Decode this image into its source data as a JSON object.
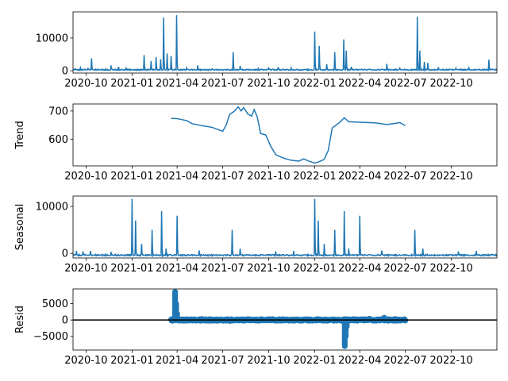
{
  "chart_data": [
    {
      "type": "line",
      "panel": "observed",
      "ylabel": "",
      "ylim": [
        -700,
        18000
      ],
      "yticks": [
        0,
        10000
      ],
      "xlim": [
        "2020-09-05",
        "2022-12-31"
      ],
      "xticks": [
        "2020-10",
        "2021-01",
        "2021-04",
        "2021-07",
        "2021-10",
        "2022-01",
        "2022-04",
        "2022-07",
        "2022-10"
      ],
      "color": "#1f77b4",
      "spikes": [
        {
          "x": "2020-09-10",
          "y": 600
        },
        {
          "x": "2020-09-20",
          "y": 900
        },
        {
          "x": "2020-10-05",
          "y": 700
        },
        {
          "x": "2020-10-12",
          "y": 3800
        },
        {
          "x": "2020-11-20",
          "y": 1600
        },
        {
          "x": "2020-12-05",
          "y": 1200
        },
        {
          "x": "2020-12-20",
          "y": 800
        },
        {
          "x": "2021-01-25",
          "y": 4800
        },
        {
          "x": "2021-02-08",
          "y": 3000
        },
        {
          "x": "2021-02-18",
          "y": 4200
        },
        {
          "x": "2021-02-27",
          "y": 3500
        },
        {
          "x": "2021-03-05",
          "y": 16300
        },
        {
          "x": "2021-03-12",
          "y": 5300
        },
        {
          "x": "2021-03-20",
          "y": 4500
        },
        {
          "x": "2021-03-31",
          "y": 17000
        },
        {
          "x": "2021-04-20",
          "y": 900
        },
        {
          "x": "2021-05-12",
          "y": 1600
        },
        {
          "x": "2021-06-10",
          "y": 600
        },
        {
          "x": "2021-07-22",
          "y": 5700
        },
        {
          "x": "2021-08-05",
          "y": 1500
        },
        {
          "x": "2021-09-10",
          "y": 700
        },
        {
          "x": "2021-10-01",
          "y": 800
        },
        {
          "x": "2021-10-20",
          "y": 1100
        },
        {
          "x": "2021-11-15",
          "y": 900
        },
        {
          "x": "2022-01-01",
          "y": 12000
        },
        {
          "x": "2022-01-10",
          "y": 7600
        },
        {
          "x": "2022-01-25",
          "y": 2000
        },
        {
          "x": "2022-02-10",
          "y": 5700
        },
        {
          "x": "2022-02-28",
          "y": 9600
        },
        {
          "x": "2022-03-05",
          "y": 6200
        },
        {
          "x": "2022-03-15",
          "y": 1200
        },
        {
          "x": "2022-05-25",
          "y": 2100
        },
        {
          "x": "2022-06-20",
          "y": 800
        },
        {
          "x": "2022-07-25",
          "y": 16500
        },
        {
          "x": "2022-07-30",
          "y": 6200
        },
        {
          "x": "2022-08-08",
          "y": 2700
        },
        {
          "x": "2022-08-15",
          "y": 2400
        },
        {
          "x": "2022-09-05",
          "y": 1100
        },
        {
          "x": "2022-10-10",
          "y": 800
        },
        {
          "x": "2022-11-05",
          "y": 900
        },
        {
          "x": "2022-12-15",
          "y": 3400
        }
      ]
    },
    {
      "type": "line",
      "panel": "trend",
      "ylabel": "Trend",
      "ylim": [
        505,
        725
      ],
      "yticks": [
        600,
        700
      ],
      "xlim": [
        "2020-09-05",
        "2022-12-31"
      ],
      "xticks": [
        "2020-10",
        "2021-01",
        "2021-04",
        "2021-07",
        "2021-10",
        "2022-01",
        "2022-04",
        "2022-07",
        "2022-10"
      ],
      "color": "#1f77b4",
      "points": [
        {
          "x": "2021-03-20",
          "y": 674
        },
        {
          "x": "2021-04-01",
          "y": 673
        },
        {
          "x": "2021-04-20",
          "y": 666
        },
        {
          "x": "2021-05-01",
          "y": 655
        },
        {
          "x": "2021-05-20",
          "y": 648
        },
        {
          "x": "2021-06-10",
          "y": 642
        },
        {
          "x": "2021-06-25",
          "y": 632
        },
        {
          "x": "2021-07-01",
          "y": 628
        },
        {
          "x": "2021-07-08",
          "y": 650
        },
        {
          "x": "2021-07-15",
          "y": 688
        },
        {
          "x": "2021-07-25",
          "y": 700
        },
        {
          "x": "2021-08-01",
          "y": 715
        },
        {
          "x": "2021-08-07",
          "y": 700
        },
        {
          "x": "2021-08-12",
          "y": 712
        },
        {
          "x": "2021-08-20",
          "y": 690
        },
        {
          "x": "2021-08-28",
          "y": 682
        },
        {
          "x": "2021-09-02",
          "y": 705
        },
        {
          "x": "2021-09-08",
          "y": 680
        },
        {
          "x": "2021-09-15",
          "y": 620
        },
        {
          "x": "2021-09-25",
          "y": 615
        },
        {
          "x": "2021-10-05",
          "y": 575
        },
        {
          "x": "2021-10-15",
          "y": 545
        },
        {
          "x": "2021-10-30",
          "y": 533
        },
        {
          "x": "2021-11-15",
          "y": 525
        },
        {
          "x": "2021-11-30",
          "y": 522
        },
        {
          "x": "2021-12-10",
          "y": 530
        },
        {
          "x": "2021-12-20",
          "y": 522
        },
        {
          "x": "2022-01-01",
          "y": 515
        },
        {
          "x": "2022-01-10",
          "y": 520
        },
        {
          "x": "2022-01-20",
          "y": 528
        },
        {
          "x": "2022-01-28",
          "y": 560
        },
        {
          "x": "2022-02-05",
          "y": 640
        },
        {
          "x": "2022-02-20",
          "y": 660
        },
        {
          "x": "2022-03-01",
          "y": 676
        },
        {
          "x": "2022-03-10",
          "y": 662
        },
        {
          "x": "2022-04-01",
          "y": 660
        },
        {
          "x": "2022-05-01",
          "y": 658
        },
        {
          "x": "2022-05-25",
          "y": 652
        },
        {
          "x": "2022-06-10",
          "y": 656
        },
        {
          "x": "2022-06-20",
          "y": 659
        },
        {
          "x": "2022-07-01",
          "y": 648
        }
      ]
    },
    {
      "type": "line",
      "panel": "seasonal",
      "ylabel": "Seasonal",
      "ylim": [
        -1000,
        12200
      ],
      "yticks": [
        0,
        10000
      ],
      "xlim": [
        "2020-09-05",
        "2022-12-31"
      ],
      "xticks": [
        "2020-10",
        "2021-01",
        "2021-04",
        "2021-07",
        "2021-10",
        "2022-01",
        "2022-04",
        "2022-07",
        "2022-10"
      ],
      "color": "#1f77b4",
      "spikes": [
        {
          "x": "2020-09-12",
          "y": 500
        },
        {
          "x": "2020-09-25",
          "y": 400
        },
        {
          "x": "2020-10-10",
          "y": 500
        },
        {
          "x": "2020-11-20",
          "y": 300
        },
        {
          "x": "2021-01-01",
          "y": 11600
        },
        {
          "x": "2021-01-08",
          "y": 7000
        },
        {
          "x": "2021-01-20",
          "y": 2000
        },
        {
          "x": "2021-02-10",
          "y": 5000
        },
        {
          "x": "2021-03-01",
          "y": 9000
        },
        {
          "x": "2021-03-10",
          "y": 1000
        },
        {
          "x": "2021-04-01",
          "y": 8000
        },
        {
          "x": "2021-05-15",
          "y": 600
        },
        {
          "x": "2021-07-20",
          "y": 5000
        },
        {
          "x": "2021-08-05",
          "y": 1000
        },
        {
          "x": "2021-10-15",
          "y": 400
        },
        {
          "x": "2021-11-20",
          "y": 500
        },
        {
          "x": "2022-01-01",
          "y": 11600
        },
        {
          "x": "2022-01-08",
          "y": 7000
        },
        {
          "x": "2022-01-20",
          "y": 2000
        },
        {
          "x": "2022-02-10",
          "y": 5000
        },
        {
          "x": "2022-03-01",
          "y": 9000
        },
        {
          "x": "2022-03-10",
          "y": 1000
        },
        {
          "x": "2022-04-01",
          "y": 8000
        },
        {
          "x": "2022-05-15",
          "y": 600
        },
        {
          "x": "2022-07-20",
          "y": 5000
        },
        {
          "x": "2022-08-05",
          "y": 1000
        },
        {
          "x": "2022-10-15",
          "y": 400
        },
        {
          "x": "2022-11-20",
          "y": 500
        }
      ]
    },
    {
      "type": "scatter",
      "panel": "resid",
      "ylabel": "Resid",
      "ylim": [
        -9200,
        9500
      ],
      "yticks": [
        -5000,
        0,
        5000
      ],
      "xlim": [
        "2020-09-05",
        "2022-12-31"
      ],
      "xticks": [
        "2020-10",
        "2021-01",
        "2021-04",
        "2021-07",
        "2021-10",
        "2022-01",
        "2022-04",
        "2022-07",
        "2022-10"
      ],
      "color": "#1f77b4",
      "zero_line": true,
      "band": {
        "x_start": "2021-03-20",
        "x_end": "2022-07-01"
      },
      "outliers": [
        {
          "x": "2021-03-25",
          "y": 500
        },
        {
          "x": "2021-03-28",
          "y": 8600
        },
        {
          "x": "2021-03-30",
          "y": 5000
        },
        {
          "x": "2021-04-01",
          "y": 2000
        },
        {
          "x": "2021-04-20",
          "y": 200
        },
        {
          "x": "2021-05-20",
          "y": 300
        },
        {
          "x": "2021-07-15",
          "y": -300
        },
        {
          "x": "2022-02-25",
          "y": -300
        },
        {
          "x": "2022-03-02",
          "y": -8000
        },
        {
          "x": "2022-03-04",
          "y": -5000
        },
        {
          "x": "2022-03-06",
          "y": -2000
        },
        {
          "x": "2022-04-20",
          "y": 400
        },
        {
          "x": "2022-05-20",
          "y": 700
        },
        {
          "x": "2022-06-10",
          "y": 300
        }
      ]
    }
  ]
}
